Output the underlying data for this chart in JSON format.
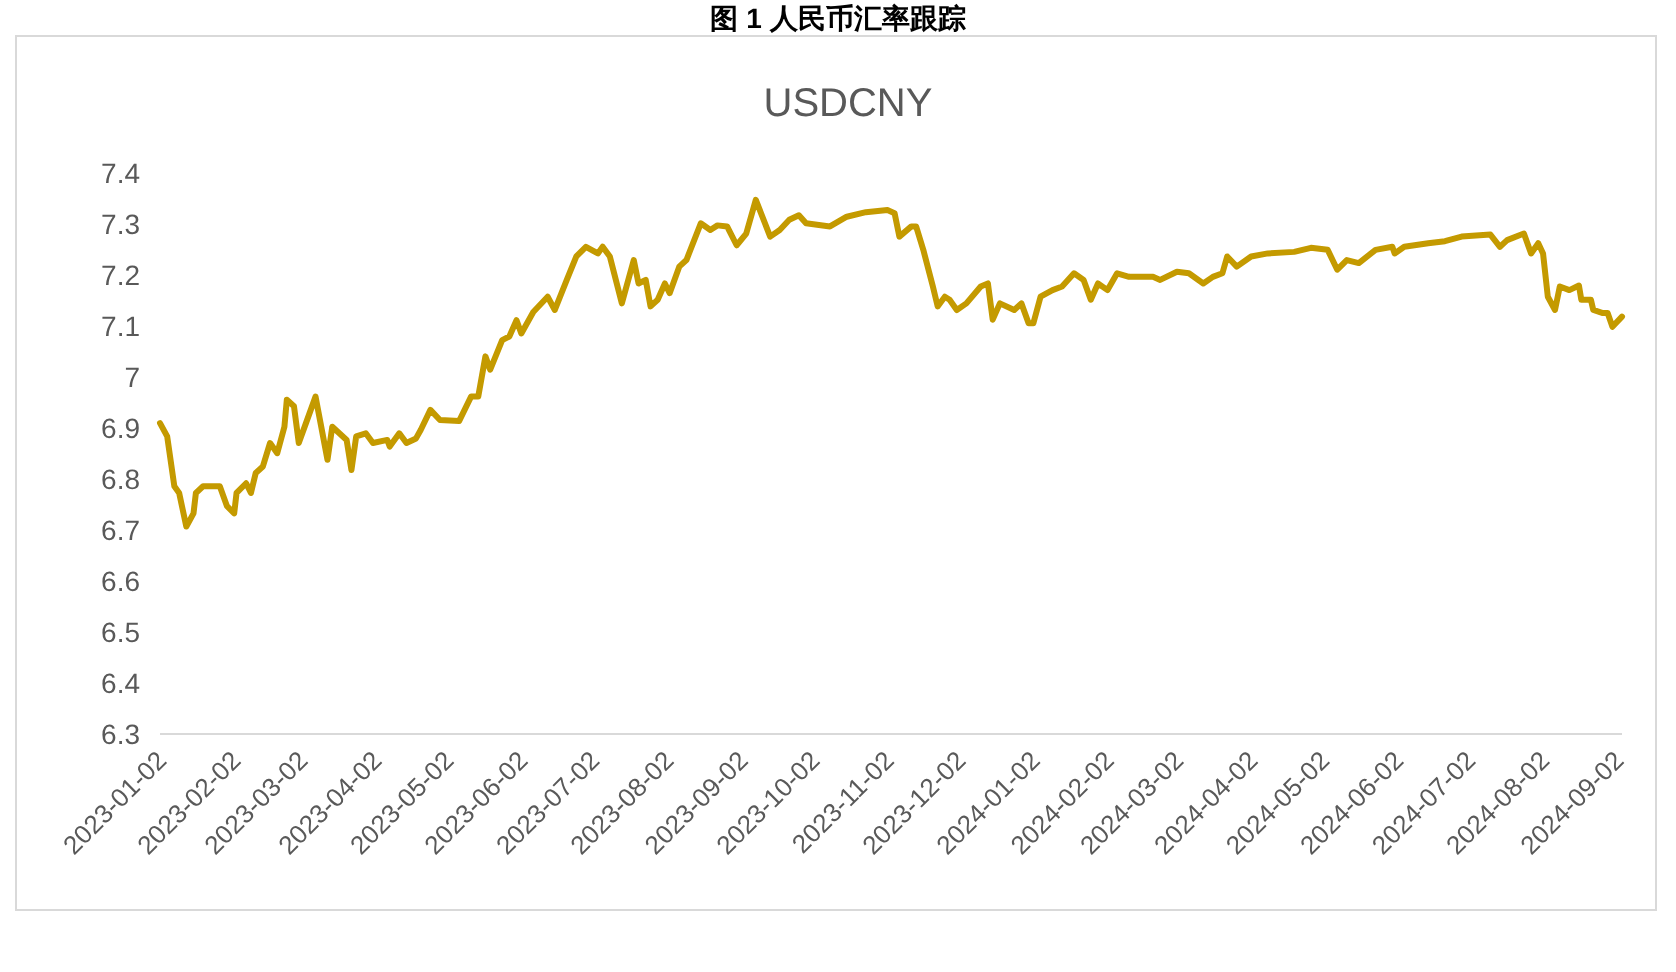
{
  "chart_data": {
    "type": "line",
    "title": "图 1 人民币汇率跟踪",
    "subtitle": "USDCNY",
    "x": [
      "2023-01-02",
      "2023-01-05",
      "2023-01-08",
      "2023-01-10",
      "2023-01-13",
      "2023-01-16",
      "2023-01-17",
      "2023-01-20",
      "2023-01-27",
      "2023-01-30",
      "2023-02-02",
      "2023-02-03",
      "2023-02-07",
      "2023-02-09",
      "2023-02-11",
      "2023-02-14",
      "2023-02-17",
      "2023-02-20",
      "2023-02-23",
      "2023-02-24",
      "2023-02-27",
      "2023-03-01",
      "2023-03-04",
      "2023-03-08",
      "2023-03-13",
      "2023-03-15",
      "2023-03-21",
      "2023-03-23",
      "2023-03-25",
      "2023-03-29",
      "2023-04-01",
      "2023-04-07",
      "2023-04-08",
      "2023-04-12",
      "2023-04-15",
      "2023-04-19",
      "2023-04-21",
      "2023-04-25",
      "2023-04-29",
      "2023-05-07",
      "2023-05-12",
      "2023-05-15",
      "2023-05-18",
      "2023-05-20",
      "2023-05-25",
      "2023-05-28",
      "2023-05-31",
      "2023-06-02",
      "2023-06-07",
      "2023-06-13",
      "2023-06-16",
      "2023-06-21",
      "2023-06-25",
      "2023-06-29",
      "2023-07-04",
      "2023-07-06",
      "2023-07-09",
      "2023-07-14",
      "2023-07-19",
      "2023-07-21",
      "2023-07-24",
      "2023-07-26",
      "2023-07-29",
      "2023-08-01",
      "2023-08-03",
      "2023-08-07",
      "2023-08-10",
      "2023-08-16",
      "2023-08-20",
      "2023-08-23",
      "2023-08-27",
      "2023-08-31",
      "2023-09-04",
      "2023-09-08",
      "2023-09-14",
      "2023-09-18",
      "2023-09-22",
      "2023-09-26",
      "2023-09-29",
      "2023-10-09",
      "2023-10-16",
      "2023-10-24",
      "2023-11-02",
      "2023-11-05",
      "2023-11-07",
      "2023-11-12",
      "2023-11-14",
      "2023-11-17",
      "2023-11-21",
      "2023-11-23",
      "2023-11-26",
      "2023-11-28",
      "2023-12-01",
      "2023-12-05",
      "2023-12-11",
      "2023-12-14",
      "2023-12-16",
      "2023-12-19",
      "2023-12-25",
      "2023-12-28",
      "2023-12-31",
      "2024-01-02",
      "2024-01-05",
      "2024-01-10",
      "2024-01-14",
      "2024-01-19",
      "2024-01-23",
      "2024-01-26",
      "2024-01-29",
      "2024-02-02",
      "2024-02-06",
      "2024-02-11",
      "2024-02-21",
      "2024-02-24",
      "2024-03-02",
      "2024-03-07",
      "2024-03-13",
      "2024-03-17",
      "2024-03-21",
      "2024-03-23",
      "2024-03-27",
      "2024-04-02",
      "2024-04-09",
      "2024-04-20",
      "2024-04-27",
      "2024-05-04",
      "2024-05-08",
      "2024-05-12",
      "2024-05-17",
      "2024-05-24",
      "2024-05-31",
      "2024-06-01",
      "2024-06-05",
      "2024-06-15",
      "2024-06-22",
      "2024-06-29",
      "2024-07-11",
      "2024-07-15",
      "2024-07-18",
      "2024-07-25",
      "2024-07-28",
      "2024-07-31",
      "2024-08-02",
      "2024-08-04",
      "2024-08-07",
      "2024-08-09",
      "2024-08-13",
      "2024-08-17",
      "2024-08-18",
      "2024-08-22",
      "2024-08-23",
      "2024-08-27",
      "2024-08-29",
      "2024-08-31",
      "2024-09-04"
    ],
    "series": [
      {
        "color": "#c49a00",
        "values": [
          6.91,
          6.884,
          6.786,
          6.773,
          6.707,
          6.733,
          6.773,
          6.786,
          6.786,
          6.747,
          6.733,
          6.773,
          6.792,
          6.773,
          6.812,
          6.825,
          6.871,
          6.851,
          6.903,
          6.956,
          6.943,
          6.871,
          6.91,
          6.962,
          6.838,
          6.903,
          6.877,
          6.818,
          6.884,
          6.89,
          6.871,
          6.877,
          6.864,
          6.89,
          6.871,
          6.88,
          6.897,
          6.936,
          6.916,
          6.914,
          6.962,
          6.962,
          7.041,
          7.015,
          7.073,
          7.08,
          7.112,
          7.086,
          7.128,
          7.158,
          7.132,
          7.191,
          7.237,
          7.256,
          7.243,
          7.256,
          7.237,
          7.145,
          7.23,
          7.184,
          7.191,
          7.139,
          7.152,
          7.184,
          7.165,
          7.217,
          7.23,
          7.302,
          7.289,
          7.298,
          7.296,
          7.259,
          7.282,
          7.348,
          7.276,
          7.289,
          7.309,
          7.318,
          7.302,
          7.296,
          7.315,
          7.324,
          7.328,
          7.322,
          7.276,
          7.296,
          7.296,
          7.25,
          7.178,
          7.139,
          7.158,
          7.152,
          7.132,
          7.145,
          7.178,
          7.184,
          7.113,
          7.145,
          7.132,
          7.145,
          7.106,
          7.106,
          7.158,
          7.171,
          7.178,
          7.204,
          7.191,
          7.152,
          7.184,
          7.171,
          7.204,
          7.197,
          7.197,
          7.191,
          7.207,
          7.204,
          7.184,
          7.197,
          7.204,
          7.237,
          7.217,
          7.237,
          7.243,
          7.246,
          7.254,
          7.25,
          7.211,
          7.23,
          7.224,
          7.25,
          7.256,
          7.243,
          7.256,
          7.263,
          7.267,
          7.276,
          7.28,
          7.256,
          7.269,
          7.282,
          7.243,
          7.263,
          7.243,
          7.158,
          7.132,
          7.178,
          7.171,
          7.18,
          7.152,
          7.152,
          7.132,
          7.126,
          7.126,
          7.099,
          7.119
        ]
      }
    ],
    "xlim": [
      "2023-01-02",
      "2024-09-04"
    ],
    "xticks": [
      "2023-01-02",
      "2023-02-02",
      "2023-03-02",
      "2023-04-02",
      "2023-05-02",
      "2023-06-02",
      "2023-07-02",
      "2023-08-02",
      "2023-09-02",
      "2023-10-02",
      "2023-11-02",
      "2023-12-02",
      "2024-01-02",
      "2024-02-02",
      "2024-03-02",
      "2024-04-02",
      "2024-05-02",
      "2024-06-02",
      "2024-07-02",
      "2024-08-02",
      "2024-09-02"
    ],
    "ylim": [
      6.3,
      7.4
    ],
    "yticks": [
      6.3,
      6.4,
      6.5,
      6.6,
      6.7,
      6.8,
      6.9,
      7,
      7.1,
      7.2,
      7.3,
      7.4
    ],
    "grid": false,
    "marker": "none",
    "line_style": "solid"
  }
}
